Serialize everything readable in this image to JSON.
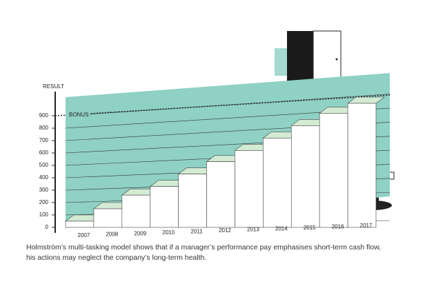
{
  "chart_data": {
    "type": "bar",
    "y_label": "RESULT",
    "annotation": "BONUS",
    "bonus_value": 900,
    "categories": [
      "2007",
      "2008",
      "2009",
      "2010",
      "2011",
      "2012",
      "2013",
      "2014",
      "2015",
      "2016",
      "2017"
    ],
    "values": [
      50,
      150,
      260,
      330,
      430,
      530,
      620,
      720,
      820,
      920,
      1000
    ],
    "color": "#ffffff",
    "top_color": "#d3ebd3",
    "background_color": "#8fd1c4",
    "ylim": [
      0,
      1050
    ],
    "yticks": [
      0,
      100,
      200,
      300,
      400,
      500,
      600,
      700,
      800,
      900
    ],
    "grid": true,
    "caption": [
      "Holmström’s multi-tasking model shows that if a manager’s performance pay emphasises short-term cash flow,",
      "his actions may neglect the company’s long-term health."
    ]
  }
}
